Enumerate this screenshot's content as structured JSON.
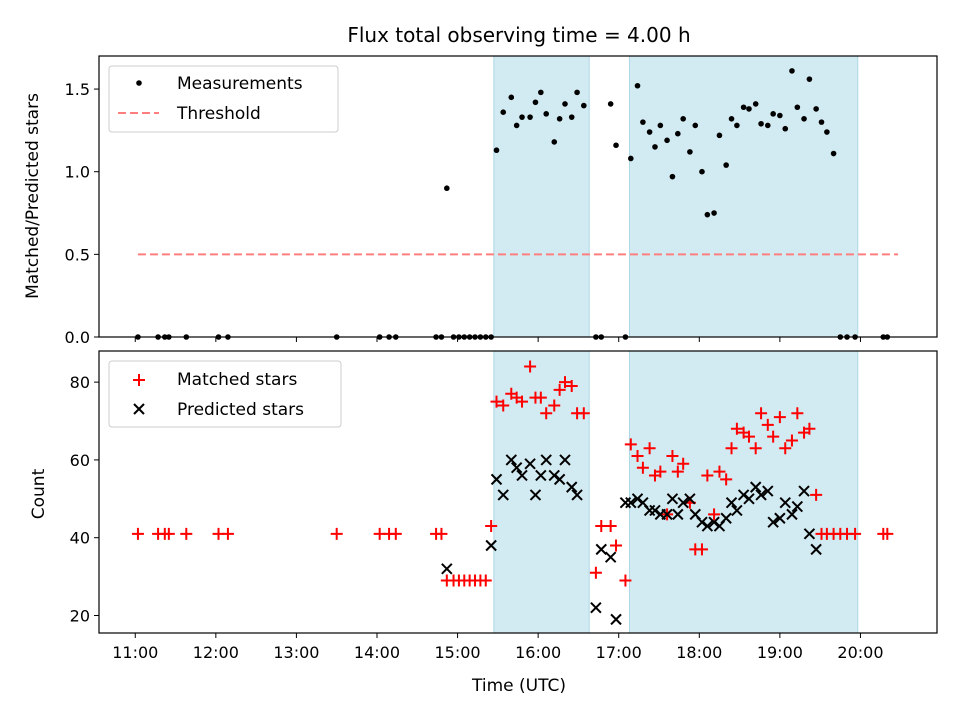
{
  "chart_data": {
    "type": "scatter",
    "title": "Flux total observing time = 4.00 h",
    "xlabel": "Time (UTC)",
    "x_ticks": [
      "11:00",
      "12:00",
      "13:00",
      "14:00",
      "15:00",
      "16:00",
      "17:00",
      "18:00",
      "19:00",
      "20:00"
    ],
    "x_range_hours": [
      10.55,
      20.95
    ],
    "grid": false,
    "shaded_intervals": [
      [
        "15:27",
        "16:38"
      ],
      [
        "17:08",
        "19:58"
      ]
    ],
    "colors": {
      "shade": "#add8e6",
      "matched": "#ff0000",
      "predicted": "#000000",
      "measurement": "#000000",
      "threshold": "#ff7f7f"
    },
    "panels": [
      {
        "ylabel": "Matched/Predicted stars",
        "ylim": [
          0,
          1.7
        ],
        "y_ticks": [
          "0.0",
          "0.5",
          "1.0",
          "1.5"
        ],
        "legend_location": "upper left",
        "legend": [
          {
            "label": "Measurements"
          },
          {
            "label": "Threshold"
          }
        ],
        "threshold": {
          "value": 0.5,
          "x_range": [
            "11:02",
            "20:28"
          ]
        },
        "series": [
          {
            "name": "Measurements",
            "marker": "dot",
            "points": [
              [
                "11:02",
                0
              ],
              [
                "11:17",
                0
              ],
              [
                "11:22",
                0
              ],
              [
                "11:25",
                0
              ],
              [
                "11:38",
                0
              ],
              [
                "12:02",
                0
              ],
              [
                "12:09",
                0
              ],
              [
                "13:30",
                0
              ],
              [
                "14:02",
                0
              ],
              [
                "14:09",
                0
              ],
              [
                "14:14",
                0
              ],
              [
                "14:44",
                0
              ],
              [
                "14:48",
                0
              ],
              [
                "14:52",
                0.9
              ],
              [
                "14:57",
                0
              ],
              [
                "15:01",
                0
              ],
              [
                "15:05",
                0
              ],
              [
                "15:09",
                0
              ],
              [
                "15:13",
                0
              ],
              [
                "15:17",
                0
              ],
              [
                "15:21",
                0
              ],
              [
                "15:25",
                0
              ],
              [
                "15:29",
                1.13
              ],
              [
                "15:34",
                1.36
              ],
              [
                "15:40",
                1.45
              ],
              [
                "15:44",
                1.28
              ],
              [
                "15:48",
                1.33
              ],
              [
                "15:54",
                1.33
              ],
              [
                "15:58",
                1.42
              ],
              [
                "16:02",
                1.48
              ],
              [
                "16:06",
                1.35
              ],
              [
                "16:12",
                1.18
              ],
              [
                "16:16",
                1.32
              ],
              [
                "16:20",
                1.41
              ],
              [
                "16:25",
                1.33
              ],
              [
                "16:29",
                1.48
              ],
              [
                "16:34",
                1.4
              ],
              [
                "16:43",
                0
              ],
              [
                "16:47",
                0
              ],
              [
                "16:54",
                1.41
              ],
              [
                "16:58",
                1.16
              ],
              [
                "17:05",
                0
              ],
              [
                "17:09",
                1.08
              ],
              [
                "17:14",
                1.52
              ],
              [
                "17:18",
                1.3
              ],
              [
                "17:23",
                1.24
              ],
              [
                "17:27",
                1.15
              ],
              [
                "17:31",
                1.28
              ],
              [
                "17:36",
                1.19
              ],
              [
                "17:40",
                0.97
              ],
              [
                "17:44",
                1.23
              ],
              [
                "17:48",
                1.32
              ],
              [
                "17:53",
                1.12
              ],
              [
                "17:57",
                1.28
              ],
              [
                "18:02",
                1.0
              ],
              [
                "18:06",
                0.74
              ],
              [
                "18:11",
                0.75
              ],
              [
                "18:15",
                1.22
              ],
              [
                "18:20",
                1.04
              ],
              [
                "18:24",
                1.32
              ],
              [
                "18:28",
                1.28
              ],
              [
                "18:33",
                1.39
              ],
              [
                "18:37",
                1.38
              ],
              [
                "18:42",
                1.41
              ],
              [
                "18:46",
                1.29
              ],
              [
                "18:51",
                1.28
              ],
              [
                "18:55",
                1.35
              ],
              [
                "19:00",
                1.34
              ],
              [
                "19:04",
                1.26
              ],
              [
                "19:09",
                1.61
              ],
              [
                "19:13",
                1.39
              ],
              [
                "19:18",
                1.32
              ],
              [
                "19:22",
                1.56
              ],
              [
                "19:27",
                1.38
              ],
              [
                "19:31",
                1.3
              ],
              [
                "19:35",
                1.24
              ],
              [
                "19:40",
                1.11
              ],
              [
                "19:45",
                0
              ],
              [
                "19:50",
                0
              ],
              [
                "19:56",
                0
              ],
              [
                "20:17",
                0
              ],
              [
                "20:20",
                0
              ]
            ]
          }
        ]
      },
      {
        "ylabel": "Count",
        "ylim": [
          15.5,
          88
        ],
        "y_ticks": [
          "20",
          "40",
          "60",
          "80"
        ],
        "legend_location": "upper left",
        "legend": [
          {
            "label": "Matched stars"
          },
          {
            "label": "Predicted stars"
          }
        ],
        "series": [
          {
            "name": "Matched stars",
            "marker": "plus",
            "points": [
              [
                "11:02",
                41
              ],
              [
                "11:17",
                41
              ],
              [
                "11:22",
                41
              ],
              [
                "11:25",
                41
              ],
              [
                "11:38",
                41
              ],
              [
                "12:02",
                41
              ],
              [
                "12:09",
                41
              ],
              [
                "13:30",
                41
              ],
              [
                "14:02",
                41
              ],
              [
                "14:09",
                41
              ],
              [
                "14:14",
                41
              ],
              [
                "14:44",
                41
              ],
              [
                "14:48",
                41
              ],
              [
                "14:52",
                29
              ],
              [
                "14:57",
                29
              ],
              [
                "15:01",
                29
              ],
              [
                "15:05",
                29
              ],
              [
                "15:09",
                29
              ],
              [
                "15:13",
                29
              ],
              [
                "15:17",
                29
              ],
              [
                "15:21",
                29
              ],
              [
                "15:25",
                43
              ],
              [
                "15:29",
                75
              ],
              [
                "15:34",
                74
              ],
              [
                "15:40",
                77
              ],
              [
                "15:44",
                76
              ],
              [
                "15:48",
                75
              ],
              [
                "15:54",
                84
              ],
              [
                "15:58",
                76
              ],
              [
                "16:02",
                76
              ],
              [
                "16:06",
                72
              ],
              [
                "16:12",
                74
              ],
              [
                "16:16",
                78
              ],
              [
                "16:20",
                80
              ],
              [
                "16:25",
                79
              ],
              [
                "16:29",
                72
              ],
              [
                "16:34",
                72
              ],
              [
                "16:43",
                31
              ],
              [
                "16:47",
                43
              ],
              [
                "16:54",
                43
              ],
              [
                "16:58",
                38
              ],
              [
                "17:05",
                29
              ],
              [
                "17:09",
                64
              ],
              [
                "17:14",
                61
              ],
              [
                "17:18",
                58
              ],
              [
                "17:23",
                63
              ],
              [
                "17:27",
                56
              ],
              [
                "17:31",
                57
              ],
              [
                "17:36",
                46
              ],
              [
                "17:40",
                61
              ],
              [
                "17:44",
                57
              ],
              [
                "17:48",
                59
              ],
              [
                "17:53",
                49
              ],
              [
                "17:57",
                37
              ],
              [
                "18:02",
                37
              ],
              [
                "18:06",
                56
              ],
              [
                "18:11",
                46
              ],
              [
                "18:15",
                57
              ],
              [
                "18:20",
                55
              ],
              [
                "18:24",
                63
              ],
              [
                "18:28",
                68
              ],
              [
                "18:33",
                67
              ],
              [
                "18:37",
                66
              ],
              [
                "18:42",
                63
              ],
              [
                "18:46",
                72
              ],
              [
                "18:51",
                69
              ],
              [
                "18:55",
                66
              ],
              [
                "19:00",
                71
              ],
              [
                "19:04",
                63
              ],
              [
                "19:09",
                65
              ],
              [
                "19:13",
                72
              ],
              [
                "19:18",
                67
              ],
              [
                "19:22",
                68
              ],
              [
                "19:27",
                51
              ],
              [
                "19:31",
                41
              ],
              [
                "19:35",
                41
              ],
              [
                "19:40",
                41
              ],
              [
                "19:45",
                41
              ],
              [
                "19:50",
                41
              ],
              [
                "19:56",
                41
              ],
              [
                "20:17",
                41
              ],
              [
                "20:20",
                41
              ]
            ]
          },
          {
            "name": "Predicted stars",
            "marker": "x",
            "points": [
              [
                "14:52",
                32
              ],
              [
                "15:25",
                38
              ],
              [
                "15:29",
                55
              ],
              [
                "15:34",
                51
              ],
              [
                "15:40",
                60
              ],
              [
                "15:44",
                58
              ],
              [
                "15:48",
                56
              ],
              [
                "15:54",
                59
              ],
              [
                "15:58",
                51
              ],
              [
                "16:02",
                56
              ],
              [
                "16:06",
                60
              ],
              [
                "16:12",
                56
              ],
              [
                "16:16",
                55
              ],
              [
                "16:20",
                60
              ],
              [
                "16:25",
                53
              ],
              [
                "16:29",
                51
              ],
              [
                "16:43",
                22
              ],
              [
                "16:47",
                37
              ],
              [
                "16:54",
                35
              ],
              [
                "16:58",
                19
              ],
              [
                "17:05",
                49
              ],
              [
                "17:09",
                49
              ],
              [
                "17:14",
                50
              ],
              [
                "17:18",
                49
              ],
              [
                "17:23",
                47
              ],
              [
                "17:27",
                47
              ],
              [
                "17:31",
                46
              ],
              [
                "17:36",
                46
              ],
              [
                "17:40",
                50
              ],
              [
                "17:44",
                46
              ],
              [
                "17:48",
                49
              ],
              [
                "17:53",
                50
              ],
              [
                "17:57",
                46
              ],
              [
                "18:02",
                44
              ],
              [
                "18:06",
                43
              ],
              [
                "18:11",
                44
              ],
              [
                "18:15",
                43
              ],
              [
                "18:20",
                45
              ],
              [
                "18:24",
                49
              ],
              [
                "18:28",
                47
              ],
              [
                "18:33",
                51
              ],
              [
                "18:37",
                50
              ],
              [
                "18:42",
                53
              ],
              [
                "18:46",
                51
              ],
              [
                "18:51",
                52
              ],
              [
                "18:55",
                44
              ],
              [
                "19:00",
                45
              ],
              [
                "19:04",
                49
              ],
              [
                "19:09",
                46
              ],
              [
                "19:13",
                48
              ],
              [
                "19:18",
                52
              ],
              [
                "19:22",
                41
              ],
              [
                "19:27",
                37
              ]
            ]
          }
        ]
      }
    ]
  }
}
